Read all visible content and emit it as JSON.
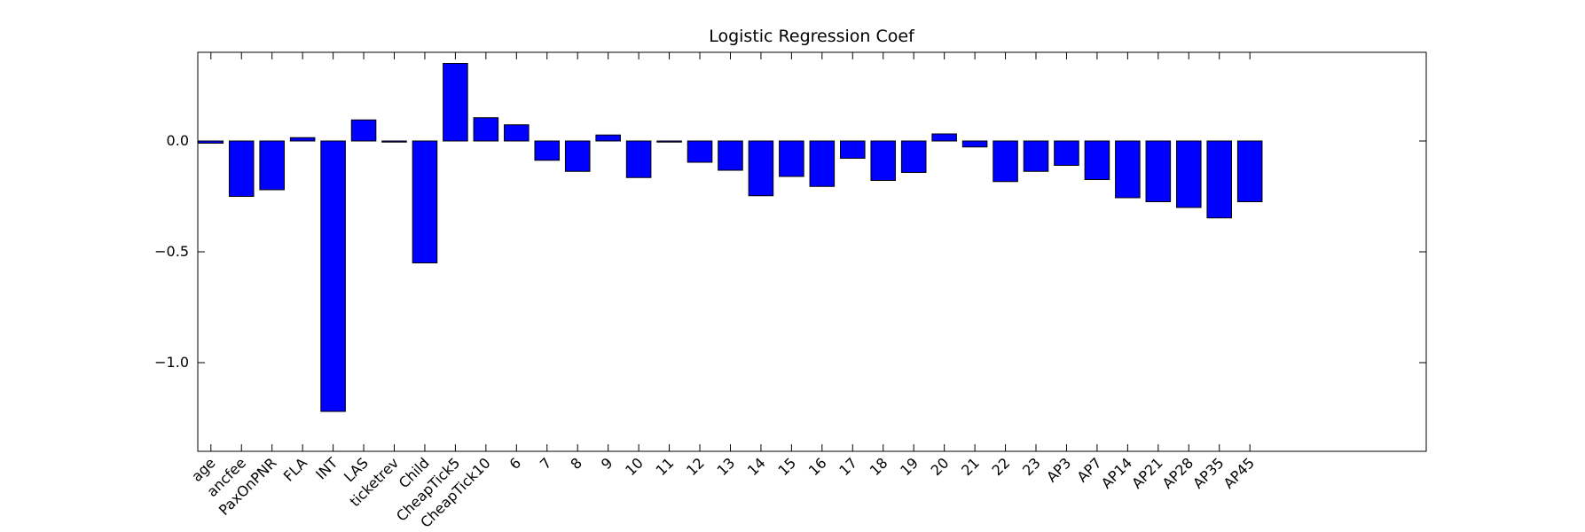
{
  "chart_data": {
    "type": "bar",
    "title": "Logistic Regression Coef",
    "categories": [
      "age",
      "ancfee",
      "PaxOnPNR",
      "FLA",
      "INT",
      "LAS",
      "ticketrev",
      "Child",
      "CheapTick5",
      "CheapTick10",
      "6",
      "7",
      "8",
      "9",
      "10",
      "11",
      "12",
      "13",
      "14",
      "15",
      "16",
      "17",
      "18",
      "19",
      "20",
      "21",
      "22",
      "23",
      "AP3",
      "AP7",
      "AP14",
      "AP21",
      "AP28",
      "AP35",
      "AP45"
    ],
    "values": [
      -0.01,
      -0.25,
      -0.22,
      0.015,
      -1.22,
      0.095,
      -0.005,
      -0.55,
      0.35,
      0.105,
      0.073,
      -0.087,
      -0.137,
      0.027,
      -0.165,
      -0.005,
      -0.096,
      -0.132,
      -0.247,
      -0.16,
      -0.205,
      -0.078,
      -0.178,
      -0.142,
      0.032,
      -0.027,
      -0.183,
      -0.137,
      -0.11,
      -0.174,
      -0.256,
      -0.274,
      -0.3,
      -0.347,
      -0.274
    ],
    "color": "#0000ff",
    "ylim": [
      -1.4,
      0.4
    ],
    "yticks": [
      {
        "value": -1.0,
        "label": "−1.0"
      },
      {
        "value": -0.5,
        "label": "−0.5"
      },
      {
        "value": 0,
        "label": "0.0"
      }
    ],
    "grid": false
  }
}
